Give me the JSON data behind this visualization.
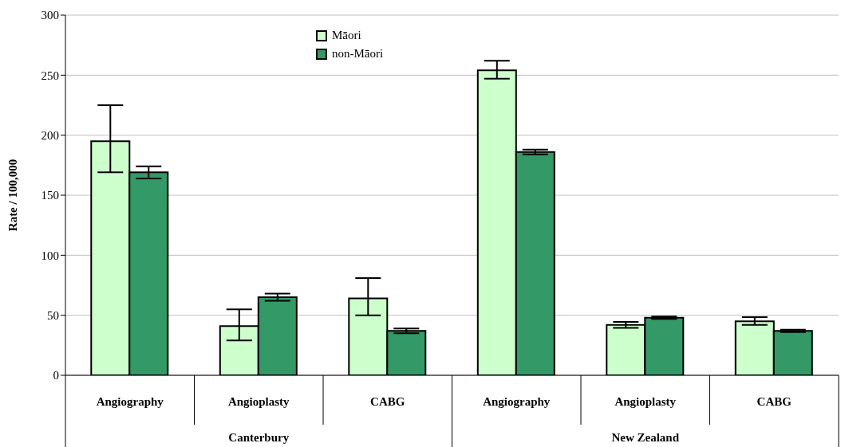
{
  "chart_data": {
    "type": "bar",
    "ylabel": "Rate / 100,000",
    "categories": [
      "Angiography",
      "Angioplasty",
      "CABG",
      "Angiography",
      "Angioplasty",
      "CABG"
    ],
    "annotations": [
      "Canterbury",
      "New Zealand"
    ],
    "series": [
      {
        "name": "Māori",
        "color": "#ccffcc",
        "values": [
          195,
          41,
          64,
          254,
          42,
          45
        ],
        "errors": [
          [
            169,
            225
          ],
          [
            29,
            55
          ],
          [
            50,
            81
          ],
          [
            247,
            262
          ],
          [
            39.5,
            44.5
          ],
          [
            42,
            48.5
          ]
        ]
      },
      {
        "name": "non-Māori",
        "color": "#339966",
        "values": [
          169,
          65,
          37,
          186,
          48,
          37
        ],
        "errors": [
          [
            164,
            174
          ],
          [
            62,
            68
          ],
          [
            35,
            39
          ],
          [
            184,
            188
          ],
          [
            47,
            49
          ],
          [
            36,
            38
          ]
        ]
      }
    ],
    "ylim": [
      0,
      300
    ],
    "yticks": [
      0,
      50,
      100,
      150,
      200,
      250,
      300
    ],
    "grid": "y",
    "legend": "top"
  }
}
